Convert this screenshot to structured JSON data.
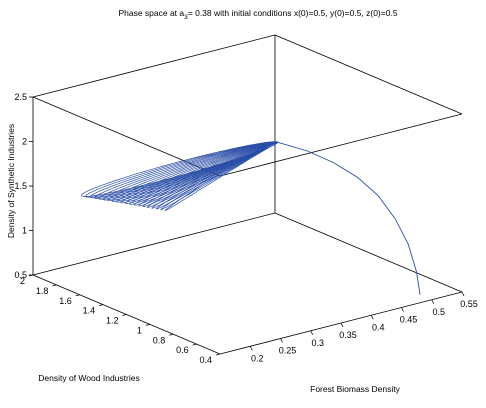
{
  "chart_data": {
    "type": "line3d",
    "title_main": "Phase space at a",
    "title_sub": "3",
    "title_rest": "= 0.38 with initial conditions x(0)=0.5, y(0)=0.5, z(0)=0.5",
    "xlabel": "Forest Biomass Density",
    "ylabel": "Density of Wood Industries",
    "zlabel": "Density of Synthetic Industries",
    "xlim": [
      0.15,
      0.55
    ],
    "ylim": [
      0.4,
      2.0
    ],
    "zlim": [
      0.5,
      2.5
    ],
    "xticks": [
      "0.2",
      "0.25",
      "0.3",
      "0.35",
      "0.4",
      "0.45",
      "0.5",
      "0.55"
    ],
    "yticks": [
      "0.4",
      "0.6",
      "0.8",
      "1",
      "1.2",
      "1.4",
      "1.6",
      "1.8",
      "2"
    ],
    "zticks": [
      "0.5",
      "1",
      "1.5",
      "2",
      "2.5"
    ],
    "grid": false,
    "box": true,
    "line_color": "#2b4fa8",
    "series": [
      {
        "initial_point": [
          0.5,
          0.5,
          0.5
        ],
        "transient": [
          [
            0.5,
            0.5,
            0.5
          ],
          [
            0.498,
            0.52,
            0.75
          ],
          [
            0.492,
            0.56,
            1.05
          ],
          [
            0.482,
            0.62,
            1.32
          ],
          [
            0.47,
            0.7,
            1.55
          ],
          [
            0.455,
            0.8,
            1.73
          ],
          [
            0.438,
            0.92,
            1.86
          ],
          [
            0.42,
            1.05,
            1.95
          ],
          [
            0.4,
            1.2,
            2.0
          ]
        ],
        "limit_cycle": {
          "x_min": 0.22,
          "x_max": 0.4,
          "y_min": 1.2,
          "y_max": 1.95,
          "z_min": 1.3,
          "z_max": 2.0
        }
      }
    ]
  }
}
